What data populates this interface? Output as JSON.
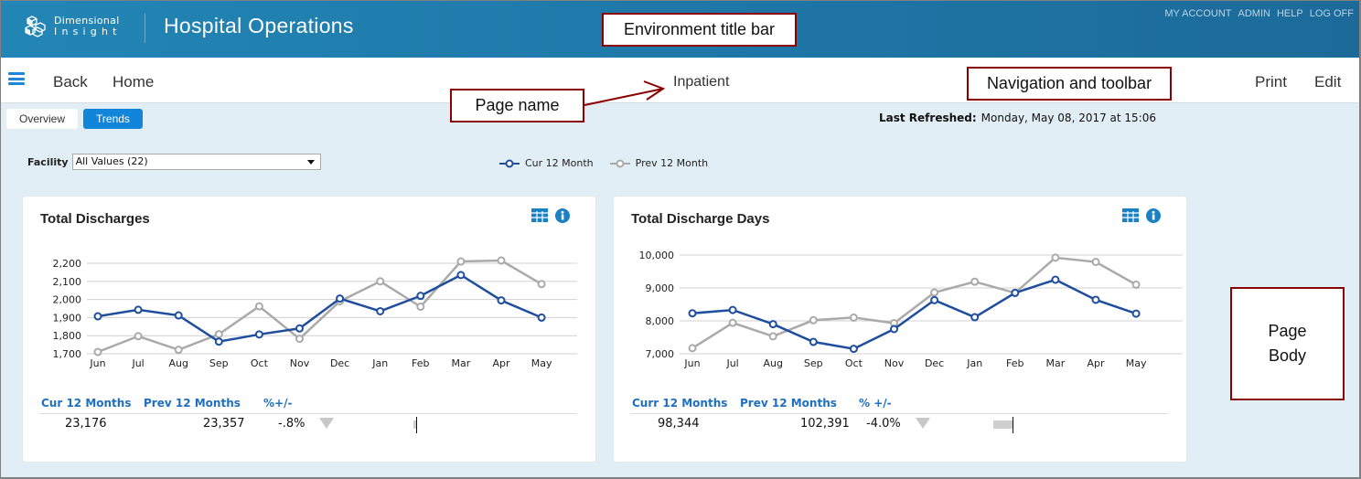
{
  "titlebar": {
    "brand_line1": "Dimensional",
    "brand_line2": "Insight",
    "app_title": "Hospital Operations",
    "links": [
      "MY ACCOUNT",
      "ADMIN",
      "HELP",
      "LOG OFF"
    ]
  },
  "navbar": {
    "back": "Back",
    "home": "Home",
    "page_name": "Inpatient",
    "print": "Print",
    "edit": "Edit"
  },
  "annotations": {
    "environment_title_bar": "Environment title bar",
    "page_name": "Page name",
    "navigation_toolbar": "Navigation and toolbar",
    "page_body_line1": "Page",
    "page_body_line2": "Body"
  },
  "tabs": [
    {
      "label": "Overview",
      "active": false
    },
    {
      "label": "Trends",
      "active": true
    }
  ],
  "refresh": {
    "label": "Last Refreshed:",
    "value": "Monday, May 08, 2017 at 15:06"
  },
  "filter": {
    "label": "Facility",
    "value": "All Values (22)"
  },
  "legend": {
    "current": "Cur 12 Month",
    "previous": "Prev 12 Month",
    "current_color": "#1f4e9e",
    "previous_color": "#aaaaaa"
  },
  "cards": [
    {
      "title": "Total Discharges",
      "stats_headers": [
        "Cur 12 Months",
        "Prev 12 Months",
        "%+/-"
      ],
      "cur_total": "23,176",
      "prev_total": "23,357",
      "pct_change": "-.8%"
    },
    {
      "title": "Total Discharge Days",
      "stats_headers": [
        "Curr 12 Months",
        "Prev 12 Months",
        "% +/-"
      ],
      "cur_total": "98,344",
      "prev_total": "102,391",
      "pct_change": "-4.0%"
    }
  ],
  "chart_data": [
    {
      "type": "line",
      "title": "Total Discharges",
      "categories": [
        "Jun",
        "Jul",
        "Aug",
        "Sep",
        "Oct",
        "Nov",
        "Dec",
        "Jan",
        "Feb",
        "Mar",
        "Apr",
        "May"
      ],
      "series": [
        {
          "name": "Cur 12 Month",
          "color": "#1f4e9e",
          "values": [
            1907,
            1943,
            1912,
            1767,
            1807,
            1840,
            2005,
            1935,
            2020,
            2135,
            1995,
            1900
          ]
        },
        {
          "name": "Prev 12 Month",
          "color": "#aaaaaa",
          "values": [
            1710,
            1797,
            1722,
            1808,
            1962,
            1783,
            1990,
            2100,
            1960,
            2210,
            2215,
            2085
          ]
        }
      ],
      "yticks": [
        "1,700",
        "1,800",
        "1,900",
        "2,000",
        "2,100",
        "2,200"
      ],
      "ylim": [
        1700,
        2200
      ],
      "grid": true,
      "xlabel": "",
      "ylabel": ""
    },
    {
      "type": "line",
      "title": "Total Discharge Days",
      "categories": [
        "Jun",
        "Jul",
        "Aug",
        "Sep",
        "Oct",
        "Nov",
        "Dec",
        "Jan",
        "Feb",
        "Mar",
        "Apr",
        "May"
      ],
      "series": [
        {
          "name": "Cur 12 Month",
          "color": "#1f4e9e",
          "values": [
            8230,
            8330,
            7900,
            7360,
            7150,
            7750,
            8630,
            8110,
            8850,
            9250,
            8640,
            8220
          ]
        },
        {
          "name": "Prev 12 Month",
          "color": "#aaaaaa",
          "values": [
            7170,
            7940,
            7530,
            8020,
            8100,
            7930,
            8860,
            9190,
            8850,
            9920,
            9790,
            9100
          ]
        }
      ],
      "yticks": [
        "7,000",
        "8,000",
        "9,000",
        "10,000"
      ],
      "ylim": [
        7000,
        10000
      ],
      "grid": true,
      "xlabel": "",
      "ylabel": ""
    }
  ]
}
